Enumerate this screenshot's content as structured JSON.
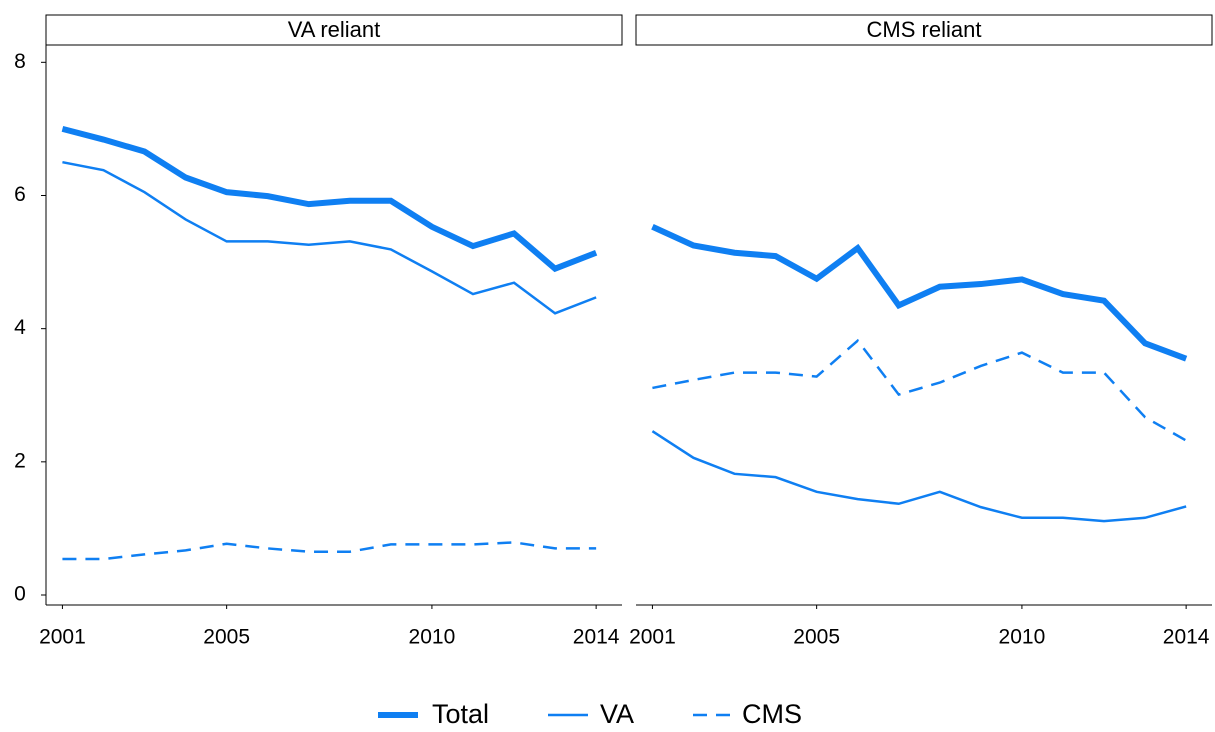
{
  "chart_data": [
    {
      "type": "line",
      "title": "VA reliant",
      "x": [
        2001,
        2002,
        2003,
        2004,
        2005,
        2006,
        2007,
        2008,
        2009,
        2010,
        2011,
        2012,
        2013,
        2014
      ],
      "series": [
        {
          "name": "Total",
          "color": "#0f7ff2",
          "line_width": 6,
          "line_style": "solid",
          "values": [
            7.0,
            6.84,
            6.66,
            6.27,
            6.05,
            5.99,
            5.87,
            5.92,
            5.92,
            5.53,
            5.24,
            5.43,
            4.9,
            5.14
          ]
        },
        {
          "name": "VA",
          "color": "#0f7ff2",
          "line_width": 2.5,
          "line_style": "solid",
          "values": [
            6.5,
            6.38,
            6.05,
            5.64,
            5.31,
            5.31,
            5.26,
            5.31,
            5.19,
            4.86,
            4.52,
            4.69,
            4.23,
            4.47
          ]
        },
        {
          "name": "CMS",
          "color": "#0f7ff2",
          "line_width": 2.5,
          "line_style": "dashed",
          "values": [
            0.54,
            0.54,
            0.61,
            0.67,
            0.77,
            0.7,
            0.65,
            0.65,
            0.76,
            0.76,
            0.76,
            0.79,
            0.7,
            0.7
          ]
        }
      ],
      "xlim": [
        2000.6,
        2014.63
      ],
      "xticks": [
        2001,
        2005,
        2010,
        2014
      ],
      "ylim": [
        -0.15,
        8.26
      ],
      "yticks": [
        0,
        2,
        4,
        6,
        8
      ]
    },
    {
      "type": "line",
      "title": "CMS reliant",
      "x": [
        2001,
        2002,
        2003,
        2004,
        2005,
        2006,
        2007,
        2008,
        2009,
        2010,
        2011,
        2012,
        2013,
        2014
      ],
      "series": [
        {
          "name": "Total",
          "color": "#0f7ff2",
          "line_width": 6,
          "line_style": "solid",
          "values": [
            5.53,
            5.25,
            5.14,
            5.09,
            4.75,
            5.21,
            4.35,
            4.63,
            4.67,
            4.74,
            4.52,
            4.42,
            3.78,
            3.55
          ]
        },
        {
          "name": "VA",
          "color": "#0f7ff2",
          "line_width": 2.5,
          "line_style": "solid",
          "values": [
            2.46,
            2.06,
            1.82,
            1.77,
            1.55,
            1.44,
            1.37,
            1.55,
            1.32,
            1.16,
            1.16,
            1.11,
            1.16,
            1.33
          ]
        },
        {
          "name": "CMS",
          "color": "#0f7ff2",
          "line_width": 2.5,
          "line_style": "dashed",
          "values": [
            3.11,
            3.23,
            3.34,
            3.34,
            3.28,
            3.82,
            3.01,
            3.19,
            3.44,
            3.64,
            3.34,
            3.34,
            2.67,
            2.32
          ]
        }
      ],
      "xlim": [
        2000.6,
        2014.63
      ],
      "xticks": [
        2001,
        2005,
        2010,
        2014
      ],
      "ylim": [
        -0.15,
        8.26
      ]
    }
  ]
}
